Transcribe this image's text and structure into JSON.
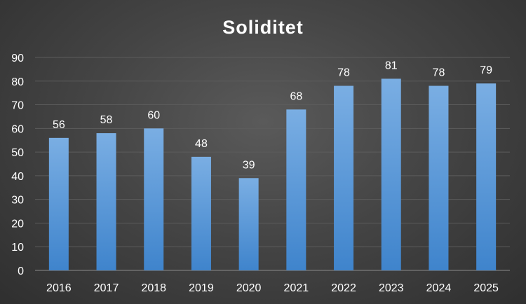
{
  "chart_data": {
    "type": "bar",
    "title": "Soliditet",
    "categories": [
      "2016",
      "2017",
      "2018",
      "2019",
      "2020",
      "2021",
      "2022",
      "2023",
      "2024",
      "2025"
    ],
    "values": [
      56,
      58,
      60,
      48,
      39,
      68,
      78,
      81,
      78,
      79
    ],
    "data_labels": [
      "56",
      "58",
      "60",
      "48",
      "39",
      "68",
      "78",
      "81",
      "78",
      "79"
    ],
    "ylim": [
      0,
      90
    ],
    "yticks": [
      "0",
      "10",
      "20",
      "30",
      "40",
      "50",
      "60",
      "70",
      "80",
      "90"
    ],
    "grid": true,
    "legend": "none",
    "colors": {
      "bar_top": "#7aaee3",
      "bar_bottom": "#3f84cc",
      "text": "#ffffff"
    }
  }
}
